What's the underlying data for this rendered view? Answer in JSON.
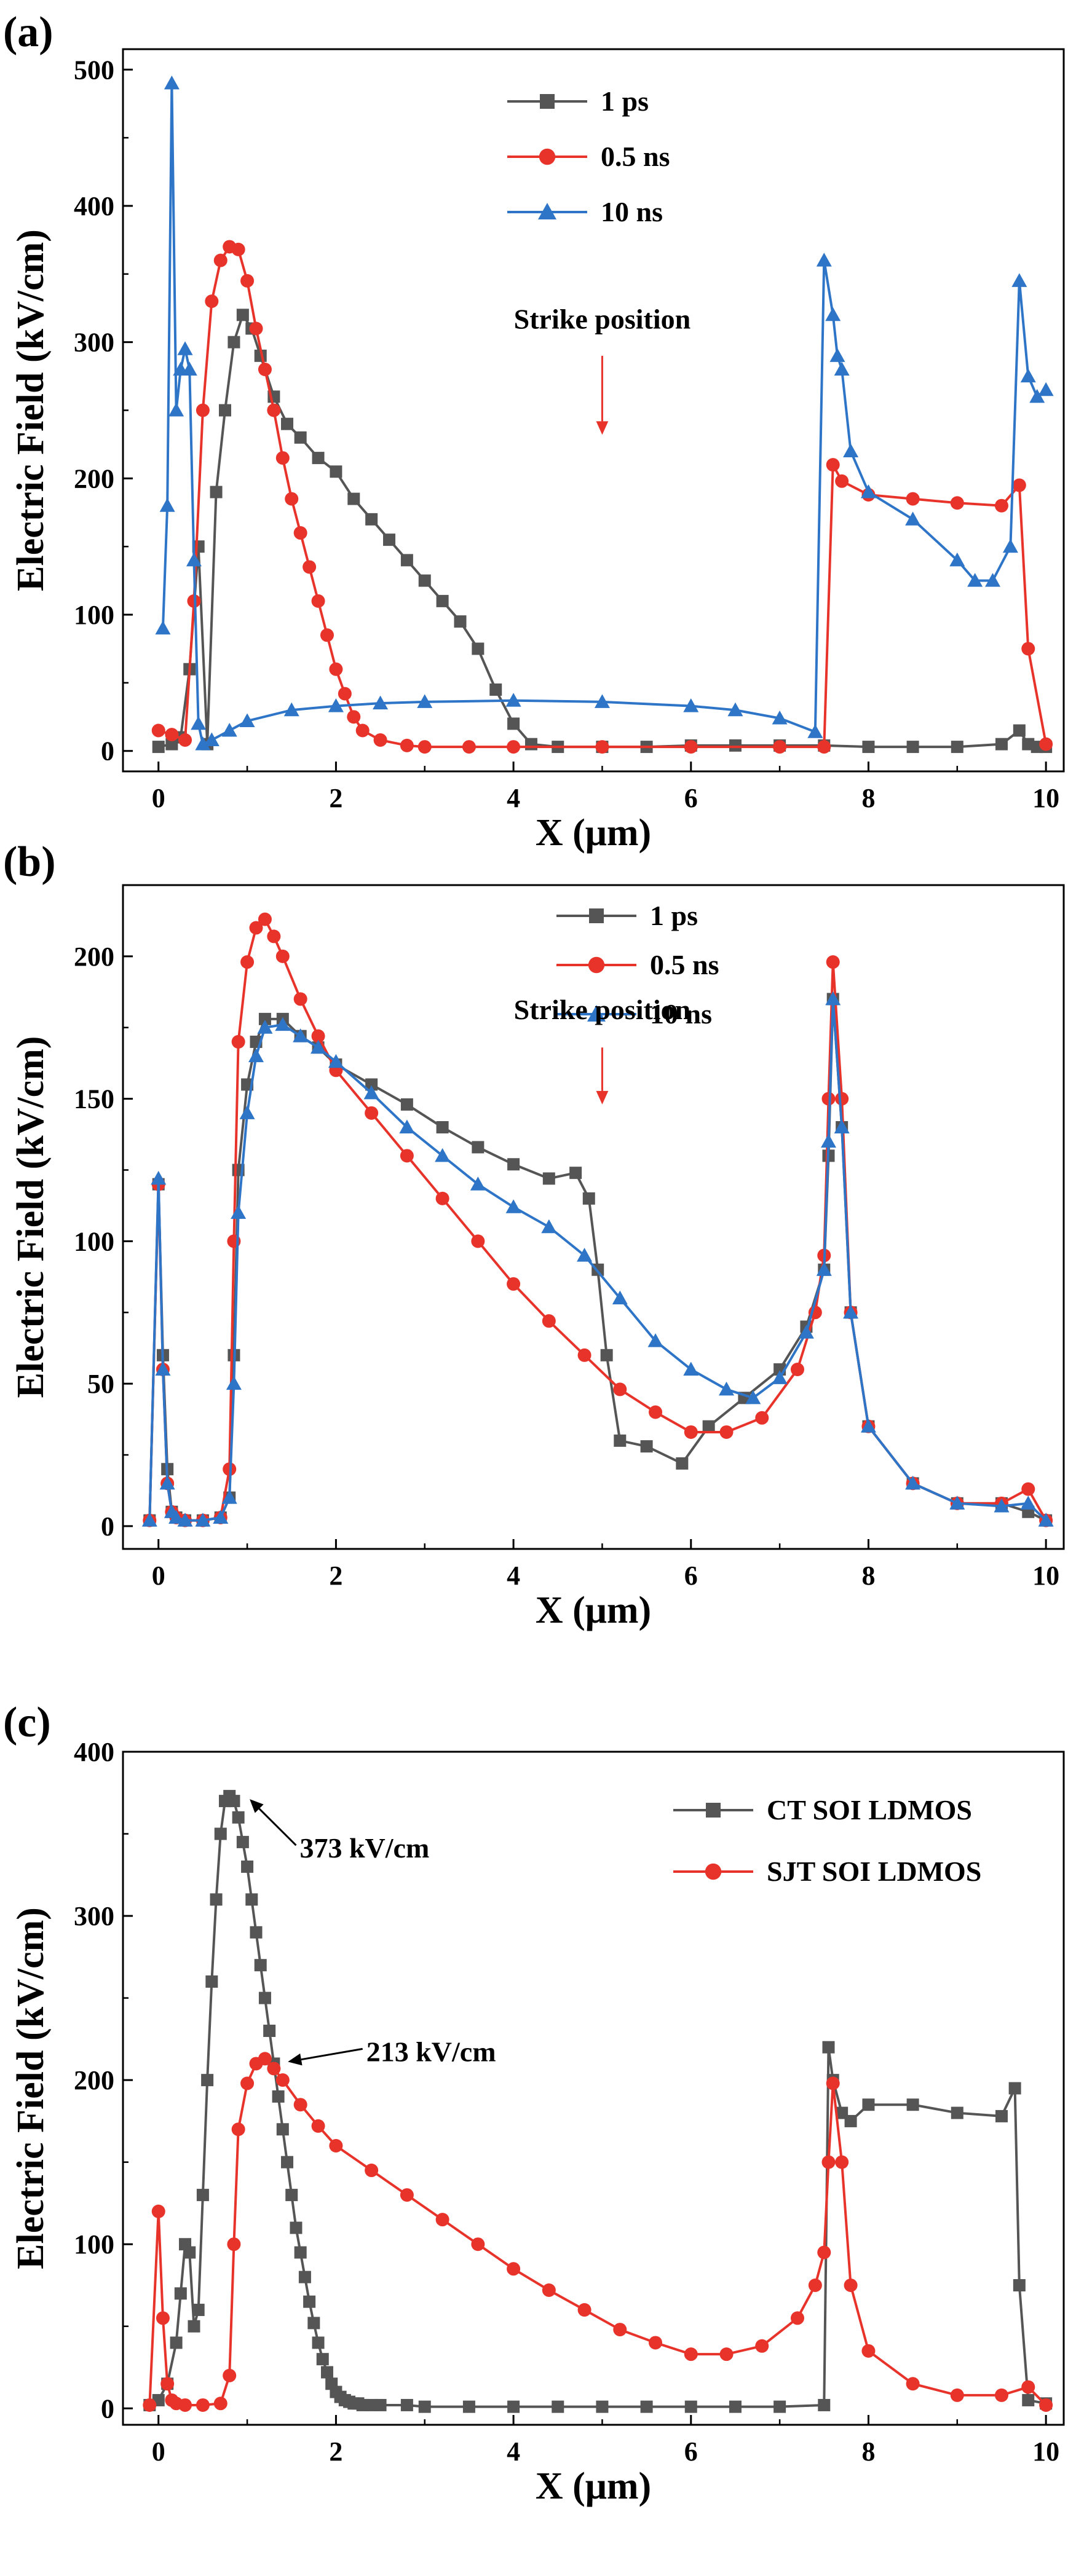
{
  "chart_data": [
    {
      "type": "line",
      "panel_label": "(a)",
      "xlabel": "X (μm)",
      "ylabel": "Electric Field (kV/cm)",
      "xlim": [
        -0.4,
        10.2
      ],
      "ylim": [
        -15,
        515
      ],
      "xticks": [
        0,
        2,
        4,
        6,
        8,
        10
      ],
      "yticks": [
        0,
        100,
        200,
        300,
        400,
        500
      ],
      "xtick_labels": [
        "0",
        "2",
        "4",
        "6",
        "8",
        "10"
      ],
      "ytick_labels": [
        "0",
        "100",
        "200",
        "300",
        "400",
        "500"
      ],
      "legend": "top-center",
      "annotations": [
        {
          "text": "Strike position",
          "x": 5.0,
          "y_text": 310,
          "arrow_from": 290,
          "arrow_to": 232,
          "color": "#e8332b"
        }
      ],
      "series": [
        {
          "name": "1 ps",
          "color": "#555555",
          "marker": "square",
          "x": [
            0,
            0.15,
            0.25,
            0.35,
            0.45,
            0.55,
            0.65,
            0.75,
            0.85,
            0.95,
            1.05,
            1.15,
            1.3,
            1.45,
            1.6,
            1.8,
            2.0,
            2.2,
            2.4,
            2.6,
            2.8,
            3.0,
            3.2,
            3.4,
            3.6,
            3.8,
            4.0,
            4.2,
            4.5,
            5.0,
            5.5,
            6.0,
            6.5,
            7.0,
            7.5,
            8.0,
            8.5,
            9.0,
            9.5,
            9.7,
            9.8,
            9.9,
            10.0
          ],
          "y": [
            3,
            5,
            10,
            60,
            150,
            5,
            190,
            250,
            300,
            320,
            310,
            290,
            260,
            240,
            230,
            215,
            205,
            185,
            170,
            155,
            140,
            125,
            110,
            95,
            75,
            45,
            20,
            5,
            3,
            3,
            3,
            4,
            4,
            4,
            4,
            3,
            3,
            3,
            5,
            15,
            5,
            3,
            3
          ]
        },
        {
          "name": "0.5 ns",
          "color": "#e8332b",
          "marker": "circle",
          "x": [
            0,
            0.15,
            0.3,
            0.4,
            0.5,
            0.6,
            0.7,
            0.8,
            0.9,
            1.0,
            1.1,
            1.2,
            1.3,
            1.4,
            1.5,
            1.6,
            1.7,
            1.8,
            1.9,
            2.0,
            2.1,
            2.2,
            2.3,
            2.5,
            2.8,
            3.0,
            3.5,
            4.0,
            5.0,
            6.0,
            7.0,
            7.5,
            7.6,
            7.7,
            8.0,
            8.5,
            9.0,
            9.5,
            9.7,
            9.8,
            10.0
          ],
          "y": [
            15,
            12,
            8,
            110,
            250,
            330,
            360,
            370,
            368,
            345,
            310,
            280,
            250,
            215,
            185,
            160,
            135,
            110,
            85,
            60,
            42,
            25,
            15,
            8,
            4,
            3,
            3,
            3,
            3,
            3,
            3,
            3,
            210,
            198,
            188,
            185,
            182,
            180,
            195,
            75,
            5
          ]
        },
        {
          "name": "10 ns",
          "color": "#2e75c8",
          "marker": "triangle",
          "x": [
            0.05,
            0.1,
            0.15,
            0.2,
            0.25,
            0.3,
            0.35,
            0.4,
            0.45,
            0.5,
            0.6,
            0.8,
            1.0,
            1.5,
            2.0,
            2.5,
            3.0,
            4.0,
            5.0,
            6.0,
            6.5,
            7.0,
            7.4,
            7.5,
            7.6,
            7.65,
            7.7,
            7.8,
            8.0,
            8.5,
            9.0,
            9.2,
            9.4,
            9.6,
            9.7,
            9.8,
            9.9,
            10.0
          ],
          "y": [
            90,
            180,
            490,
            250,
            280,
            295,
            280,
            140,
            20,
            5,
            8,
            15,
            22,
            30,
            33,
            35,
            36,
            37,
            36,
            33,
            30,
            24,
            14,
            360,
            320,
            290,
            280,
            220,
            190,
            170,
            140,
            125,
            125,
            150,
            345,
            275,
            260,
            265
          ]
        }
      ]
    },
    {
      "type": "line",
      "panel_label": "(b)",
      "xlabel": "X (μm)",
      "ylabel": "Electric Field (kV/cm)",
      "xlim": [
        -0.4,
        10.2
      ],
      "ylim": [
        -8,
        225
      ],
      "xticks": [
        0,
        2,
        4,
        6,
        8,
        10
      ],
      "yticks": [
        0,
        50,
        100,
        150,
        200
      ],
      "xtick_labels": [
        "0",
        "2",
        "4",
        "6",
        "8",
        "10"
      ],
      "ytick_labels": [
        "0",
        "50",
        "100",
        "150",
        "200"
      ],
      "legend": "top-center",
      "annotations": [
        {
          "text": "Strike position",
          "x": 5.0,
          "y_text": 178,
          "arrow_from": 168,
          "arrow_to": 148,
          "color": "#e8332b"
        }
      ],
      "series": [
        {
          "name": "1 ps",
          "color": "#555555",
          "marker": "square",
          "x": [
            -0.1,
            0.0,
            0.05,
            0.1,
            0.15,
            0.2,
            0.3,
            0.5,
            0.7,
            0.8,
            0.85,
            0.9,
            1.0,
            1.1,
            1.2,
            1.4,
            1.6,
            1.8,
            2.0,
            2.4,
            2.8,
            3.2,
            3.6,
            4.0,
            4.4,
            4.7,
            4.85,
            4.95,
            5.05,
            5.2,
            5.5,
            5.9,
            6.2,
            6.6,
            7.0,
            7.3,
            7.5,
            7.55,
            7.6,
            7.7,
            7.8,
            8.0,
            8.5,
            9.0,
            9.5,
            9.8,
            10.0
          ],
          "y": [
            2,
            120,
            60,
            20,
            5,
            3,
            2,
            2,
            3,
            10,
            60,
            125,
            155,
            170,
            178,
            178,
            172,
            168,
            162,
            155,
            148,
            140,
            133,
            127,
            122,
            124,
            115,
            90,
            60,
            30,
            28,
            22,
            35,
            45,
            55,
            70,
            90,
            130,
            185,
            140,
            75,
            35,
            15,
            8,
            8,
            5,
            2
          ]
        },
        {
          "name": "0.5 ns",
          "color": "#e8332b",
          "marker": "circle",
          "x": [
            -0.1,
            0.0,
            0.05,
            0.1,
            0.15,
            0.2,
            0.3,
            0.5,
            0.7,
            0.8,
            0.85,
            0.9,
            1.0,
            1.1,
            1.2,
            1.3,
            1.4,
            1.6,
            1.8,
            2.0,
            2.4,
            2.8,
            3.2,
            3.6,
            4.0,
            4.4,
            4.8,
            5.2,
            5.6,
            6.0,
            6.4,
            6.8,
            7.2,
            7.4,
            7.5,
            7.55,
            7.6,
            7.7,
            7.8,
            8.0,
            8.5,
            9.0,
            9.5,
            9.8,
            10.0
          ],
          "y": [
            2,
            120,
            55,
            15,
            5,
            3,
            2,
            2,
            3,
            20,
            100,
            170,
            198,
            210,
            213,
            207,
            200,
            185,
            172,
            160,
            145,
            130,
            115,
            100,
            85,
            72,
            60,
            48,
            40,
            33,
            33,
            38,
            55,
            75,
            95,
            150,
            198,
            150,
            75,
            35,
            15,
            8,
            8,
            13,
            2
          ]
        },
        {
          "name": "10 ns",
          "color": "#2e75c8",
          "marker": "triangle",
          "x": [
            -0.1,
            0.0,
            0.05,
            0.1,
            0.15,
            0.2,
            0.3,
            0.5,
            0.7,
            0.8,
            0.85,
            0.9,
            1.0,
            1.1,
            1.2,
            1.4,
            1.6,
            1.8,
            2.0,
            2.4,
            2.8,
            3.2,
            3.6,
            4.0,
            4.4,
            4.8,
            5.2,
            5.6,
            6.0,
            6.4,
            6.7,
            7.0,
            7.3,
            7.5,
            7.55,
            7.6,
            7.7,
            7.8,
            8.0,
            8.5,
            9.0,
            9.5,
            9.8,
            10.0
          ],
          "y": [
            2,
            122,
            55,
            15,
            5,
            3,
            2,
            2,
            3,
            10,
            50,
            110,
            145,
            165,
            175,
            176,
            172,
            168,
            163,
            152,
            140,
            130,
            120,
            112,
            105,
            95,
            80,
            65,
            55,
            48,
            45,
            52,
            68,
            90,
            135,
            185,
            140,
            75,
            35,
            15,
            8,
            7,
            8,
            2
          ]
        }
      ]
    },
    {
      "type": "line",
      "panel_label": "(c)",
      "xlabel": "X (μm)",
      "ylabel": "Electric Field (kV/cm)",
      "xlim": [
        -0.4,
        10.2
      ],
      "ylim": [
        -10,
        400
      ],
      "xticks": [
        0,
        2,
        4,
        6,
        8,
        10
      ],
      "yticks": [
        0,
        100,
        200,
        300,
        400
      ],
      "xtick_labels": [
        "0",
        "2",
        "4",
        "6",
        "8",
        "10"
      ],
      "ytick_labels": [
        "0",
        "100",
        "200",
        "300",
        "400"
      ],
      "legend": "top-right",
      "annotations": [
        {
          "text": "373 kV/cm",
          "x_from": 0.82,
          "y_from": 373,
          "x_to": 1.55,
          "y_to": 343,
          "color": "#000000"
        },
        {
          "text": "213 kV/cm",
          "x_from": 1.25,
          "y_from": 213,
          "x_to": 2.3,
          "y_to": 219,
          "color": "#000000"
        }
      ],
      "series": [
        {
          "name": "CT SOI LDMOS",
          "color": "#555555",
          "marker": "square",
          "x": [
            -0.1,
            0.0,
            0.1,
            0.2,
            0.25,
            0.3,
            0.35,
            0.4,
            0.45,
            0.5,
            0.55,
            0.6,
            0.65,
            0.7,
            0.75,
            0.8,
            0.85,
            0.9,
            0.95,
            1.0,
            1.05,
            1.1,
            1.15,
            1.2,
            1.25,
            1.3,
            1.35,
            1.4,
            1.45,
            1.5,
            1.55,
            1.6,
            1.65,
            1.7,
            1.75,
            1.8,
            1.85,
            1.9,
            1.95,
            2.0,
            2.05,
            2.1,
            2.15,
            2.2,
            2.25,
            2.3,
            2.4,
            2.5,
            2.8,
            3.0,
            3.5,
            4.0,
            4.5,
            5.0,
            5.5,
            6.0,
            6.5,
            7.0,
            7.5,
            7.55,
            7.6,
            7.7,
            7.8,
            8.0,
            8.5,
            9.0,
            9.5,
            9.65,
            9.7,
            9.8,
            10.0
          ],
          "y": [
            2,
            5,
            15,
            40,
            70,
            100,
            95,
            50,
            60,
            130,
            200,
            260,
            310,
            350,
            370,
            373,
            370,
            360,
            345,
            330,
            310,
            290,
            270,
            250,
            230,
            210,
            190,
            170,
            150,
            130,
            110,
            95,
            80,
            65,
            52,
            40,
            30,
            22,
            15,
            10,
            7,
            5,
            4,
            3,
            3,
            2,
            2,
            2,
            2,
            1,
            1,
            1,
            1,
            1,
            1,
            1,
            1,
            1,
            2,
            220,
            200,
            180,
            175,
            185,
            185,
            180,
            178,
            195,
            75,
            5,
            3
          ]
        },
        {
          "name": "SJT SOI LDMOS",
          "color": "#e8332b",
          "marker": "circle",
          "x": [
            -0.1,
            0.0,
            0.05,
            0.1,
            0.15,
            0.2,
            0.3,
            0.5,
            0.7,
            0.8,
            0.85,
            0.9,
            1.0,
            1.1,
            1.2,
            1.3,
            1.4,
            1.6,
            1.8,
            2.0,
            2.4,
            2.8,
            3.2,
            3.6,
            4.0,
            4.4,
            4.8,
            5.2,
            5.6,
            6.0,
            6.4,
            6.8,
            7.2,
            7.4,
            7.5,
            7.55,
            7.6,
            7.7,
            7.8,
            8.0,
            8.5,
            9.0,
            9.5,
            9.8,
            10.0
          ],
          "y": [
            2,
            120,
            55,
            15,
            5,
            3,
            2,
            2,
            3,
            20,
            100,
            170,
            198,
            210,
            213,
            207,
            200,
            185,
            172,
            160,
            145,
            130,
            115,
            100,
            85,
            72,
            60,
            48,
            40,
            33,
            33,
            38,
            55,
            75,
            95,
            150,
            198,
            150,
            75,
            35,
            15,
            8,
            8,
            13,
            2
          ]
        }
      ]
    }
  ]
}
